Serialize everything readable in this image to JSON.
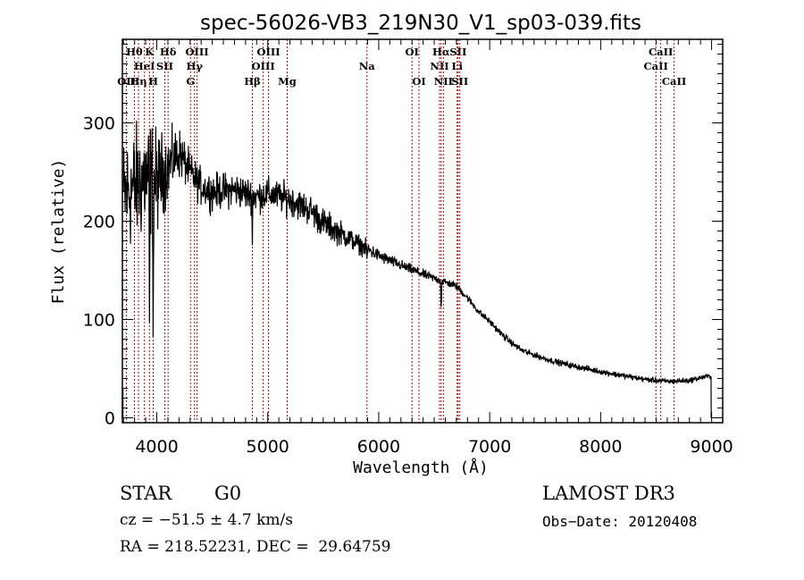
{
  "chart_data": {
    "type": "line",
    "title": "spec-56026-VB3_219N30_V1_sp03-039.fits",
    "xlabel": "Wavelength (Å)",
    "ylabel": "Flux (relative)",
    "xlim": [
      3690,
      9100
    ],
    "ylim": [
      -5,
      385
    ],
    "x_ticks": [
      4000,
      5000,
      6000,
      7000,
      8000,
      9000
    ],
    "x_tick_labels": [
      "4000",
      "5000",
      "6000",
      "7000",
      "8000",
      "9000"
    ],
    "x_minor_step": 100,
    "y_ticks": [
      0,
      100,
      200,
      300
    ],
    "y_tick_labels": [
      "0",
      "100",
      "200",
      "300"
    ],
    "y_minor_step": 10,
    "grid": false,
    "legend": "none",
    "series": [
      {
        "name": "spectrum",
        "color": "#000000",
        "continuum": [
          [
            3700,
            225
          ],
          [
            3800,
            235
          ],
          [
            3900,
            245
          ],
          [
            4000,
            240
          ],
          [
            4100,
            255
          ],
          [
            4200,
            270
          ],
          [
            4300,
            250
          ],
          [
            4400,
            235
          ],
          [
            4500,
            230
          ],
          [
            4700,
            232
          ],
          [
            4900,
            225
          ],
          [
            5000,
            228
          ],
          [
            5200,
            222
          ],
          [
            5400,
            210
          ],
          [
            5500,
            198
          ],
          [
            5700,
            185
          ],
          [
            5800,
            178
          ],
          [
            6000,
            165
          ],
          [
            6200,
            155
          ],
          [
            6400,
            146
          ],
          [
            6500,
            142
          ],
          [
            6600,
            138
          ],
          [
            6700,
            134
          ],
          [
            6800,
            122
          ],
          [
            6900,
            108
          ],
          [
            7000,
            98
          ],
          [
            7100,
            86
          ],
          [
            7200,
            76
          ],
          [
            7300,
            68
          ],
          [
            7500,
            60
          ],
          [
            7700,
            54
          ],
          [
            8000,
            47
          ],
          [
            8200,
            43
          ],
          [
            8400,
            39
          ],
          [
            8600,
            37
          ],
          [
            8800,
            38
          ],
          [
            8950,
            42
          ],
          [
            8990,
            42
          ]
        ],
        "noise_amplitude": [
          [
            3700,
            110
          ],
          [
            3950,
            110
          ],
          [
            4100,
            60
          ],
          [
            4300,
            35
          ],
          [
            5000,
            30
          ],
          [
            5500,
            28
          ],
          [
            6000,
            12
          ],
          [
            6500,
            8
          ],
          [
            7000,
            6
          ],
          [
            9000,
            5
          ]
        ],
        "features": [
          {
            "wavelength": 6563,
            "depth": 30
          },
          {
            "wavelength": 5894,
            "depth": 10
          },
          {
            "wavelength": 3934,
            "depth": 150
          },
          {
            "wavelength": 3968,
            "depth": 150
          },
          {
            "wavelength": 4861,
            "depth": 50
          },
          {
            "wavelength": 8995,
            "depth": 42
          }
        ]
      }
    ],
    "line_markers": {
      "color": "#a01010",
      "lines": [
        {
          "label": "OII",
          "wavelength": 3727,
          "row": 3
        },
        {
          "label": "Hθ",
          "wavelength": 3798,
          "row": 1
        },
        {
          "label": "Hη",
          "wavelength": 3835,
          "row": 3
        },
        {
          "label": "HeI",
          "wavelength": 3889,
          "row": 2
        },
        {
          "label": "K",
          "wavelength": 3934,
          "row": 1
        },
        {
          "label": "H",
          "wavelength": 3968,
          "row": 3
        },
        {
          "label": "SII",
          "wavelength": 4072,
          "row": 2
        },
        {
          "label": "Hδ",
          "wavelength": 4102,
          "row": 1
        },
        {
          "label": "G",
          "wavelength": 4304,
          "row": 3
        },
        {
          "label": "Hγ",
          "wavelength": 4340,
          "row": 2
        },
        {
          "label": "OIII",
          "wavelength": 4363,
          "row": 1
        },
        {
          "label": "Hβ",
          "wavelength": 4861,
          "row": 3
        },
        {
          "label": "OIII",
          "wavelength": 4959,
          "row": 2
        },
        {
          "label": "OIII",
          "wavelength": 5007,
          "row": 1
        },
        {
          "label": "Mg",
          "wavelength": 5175,
          "row": 3
        },
        {
          "label": "Na",
          "wavelength": 5894,
          "row": 2
        },
        {
          "label": "OI",
          "wavelength": 6300,
          "row": 1
        },
        {
          "label": "OI",
          "wavelength": 6363,
          "row": 3
        },
        {
          "label": "NII",
          "wavelength": 6548,
          "row": 2
        },
        {
          "label": "Hα",
          "wavelength": 6563,
          "row": 1
        },
        {
          "label": "NII",
          "wavelength": 6583,
          "row": 3
        },
        {
          "label": "Li",
          "wavelength": 6707,
          "row": 2
        },
        {
          "label": "SII",
          "wavelength": 6716,
          "row": 1
        },
        {
          "label": "SII",
          "wavelength": 6731,
          "row": 3
        },
        {
          "label": "CaII",
          "wavelength": 8498,
          "row": 2
        },
        {
          "label": "CaII",
          "wavelength": 8542,
          "row": 1
        },
        {
          "label": "CaII",
          "wavelength": 8662,
          "row": 3
        }
      ]
    }
  },
  "info": {
    "class": "STAR",
    "subclass": "G0",
    "redshift": "cz = −51.5 ± 4.7 km/s",
    "coords": "RA = 218.52231, DEC =  29.64759",
    "survey": "LAMOST DR3",
    "obs_date": "Obs−Date: 20120408"
  }
}
